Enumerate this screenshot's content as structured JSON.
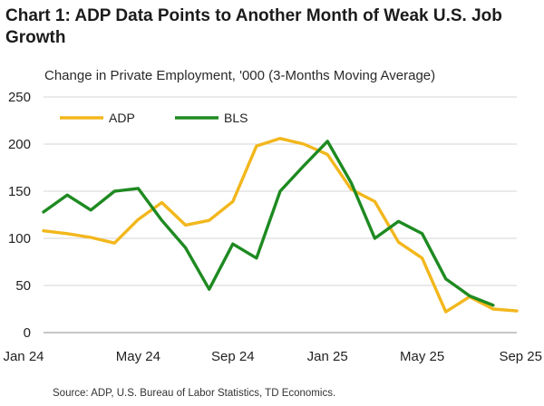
{
  "title": "Chart 1: ADP Data Points to Another Month of Weak U.S. Job Growth",
  "source": "Source: ADP, U.S. Bureau of Labor Statistics, TD Economics.",
  "colors": {
    "adp": "#f2b71c",
    "bls": "#1e8a21",
    "grid": "#d6d6d6",
    "axis": "#8c8c8c"
  },
  "chart_data": {
    "type": "line",
    "subtitle": "Change in Private Employment, '000 (3-Months Moving Average)",
    "x": [
      "Jan 24",
      "Feb 24",
      "Mar 24",
      "Apr 24",
      "May 24",
      "Jun 24",
      "Jul 24",
      "Aug 24",
      "Sep 24",
      "Oct 24",
      "Nov 24",
      "Dec 24",
      "Jan 25",
      "Feb 25",
      "Mar 25",
      "Apr 25",
      "May 25",
      "Jun 25",
      "Jul 25",
      "Aug 25",
      "Sep 25"
    ],
    "x_tick_labels": [
      "Jan 24",
      "May 24",
      "Sep 24",
      "Jan 25",
      "May 25",
      "Sep 25"
    ],
    "y_ticks": [
      0,
      50,
      100,
      150,
      200,
      250
    ],
    "ylim": [
      0,
      250
    ],
    "grid": "horizontal",
    "legend_position": "top-left",
    "series": [
      {
        "name": "ADP",
        "color": "#f2b71c",
        "values": [
          108,
          105,
          101,
          95,
          120,
          138,
          114,
          119,
          139,
          198,
          206,
          200,
          189,
          152,
          139,
          96,
          79,
          22,
          38,
          25,
          23
        ]
      },
      {
        "name": "BLS",
        "color": "#1e8a21",
        "values": [
          128,
          146,
          130,
          150,
          153,
          119,
          90,
          46,
          94,
          79,
          150,
          177,
          203,
          159,
          100,
          118,
          105,
          57,
          39,
          29,
          null
        ]
      }
    ]
  }
}
